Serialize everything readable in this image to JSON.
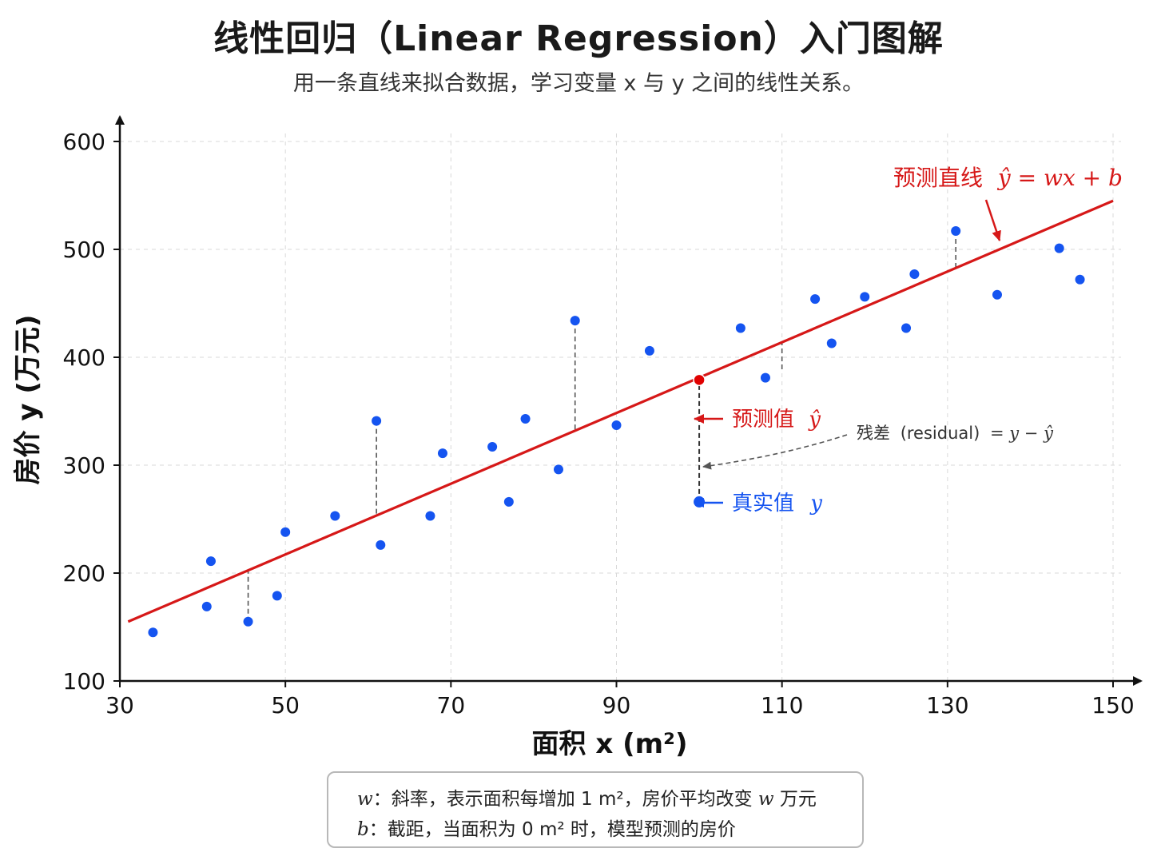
{
  "title": "线性回归（Linear Regression）入门图解",
  "subtitle": "用一条直线来拟合数据，学习变量 x 与 y 之间的线性关系。",
  "colors": {
    "points": "#1554f0",
    "line": "#d61818",
    "highlight": "#e00000",
    "residual": "#555555",
    "grid": "#d9d9d9",
    "axis": "#111111"
  },
  "annotations": {
    "line_label_cn": "预测直线",
    "line_label_math": "ŷ = wx + b",
    "pred_label_cn": "预测值",
    "pred_label_math": "ŷ",
    "true_label_cn": "真实值",
    "true_label_math": "y",
    "residual_label_cn": "残差",
    "residual_label_en": "(residual)",
    "residual_label_math": "= y − ŷ"
  },
  "notes": [
    {
      "var": "w",
      "text": "：斜率，表示面积每增加 1 m²，房价平均改变",
      "var2": "w",
      "tail": "万元"
    },
    {
      "var": "b",
      "text": "：截距，当面积为 0 m² 时，模型预测的房价",
      "var2": "",
      "tail": ""
    }
  ],
  "chart_data": {
    "type": "scatter",
    "xlabel": "面积 x (m²)",
    "ylabel": "房价 y (万元)",
    "xlim": [
      30,
      150
    ],
    "ylim": [
      100,
      600
    ],
    "xticks": [
      30,
      50,
      70,
      90,
      110,
      130,
      150
    ],
    "yticks": [
      100,
      200,
      300,
      400,
      500,
      600
    ],
    "grid": true,
    "points": [
      {
        "x": 34,
        "y": 145
      },
      {
        "x": 40.5,
        "y": 169
      },
      {
        "x": 41,
        "y": 211
      },
      {
        "x": 45.5,
        "y": 155
      },
      {
        "x": 49,
        "y": 179
      },
      {
        "x": 50,
        "y": 238
      },
      {
        "x": 56,
        "y": 253
      },
      {
        "x": 61,
        "y": 341
      },
      {
        "x": 61.5,
        "y": 226
      },
      {
        "x": 67.5,
        "y": 253
      },
      {
        "x": 69,
        "y": 311
      },
      {
        "x": 75,
        "y": 317
      },
      {
        "x": 77,
        "y": 266
      },
      {
        "x": 79,
        "y": 343
      },
      {
        "x": 83,
        "y": 296
      },
      {
        "x": 85,
        "y": 434
      },
      {
        "x": 90,
        "y": 337
      },
      {
        "x": 94,
        "y": 406
      },
      {
        "x": 105,
        "y": 427
      },
      {
        "x": 108,
        "y": 381
      },
      {
        "x": 114,
        "y": 454
      },
      {
        "x": 116,
        "y": 413
      },
      {
        "x": 120,
        "y": 456
      },
      {
        "x": 125,
        "y": 427
      },
      {
        "x": 126,
        "y": 477
      },
      {
        "x": 131,
        "y": 517
      },
      {
        "x": 136,
        "y": 458
      },
      {
        "x": 143.5,
        "y": 501
      },
      {
        "x": 146,
        "y": 472
      }
    ],
    "regression_line": {
      "x1": 31,
      "y1": 155,
      "x2": 150,
      "y2": 545
    },
    "highlight": {
      "x": 100,
      "y_true": 266,
      "y_pred": 379
    },
    "residual_x": [
      45.5,
      61,
      85,
      110,
      131
    ]
  }
}
